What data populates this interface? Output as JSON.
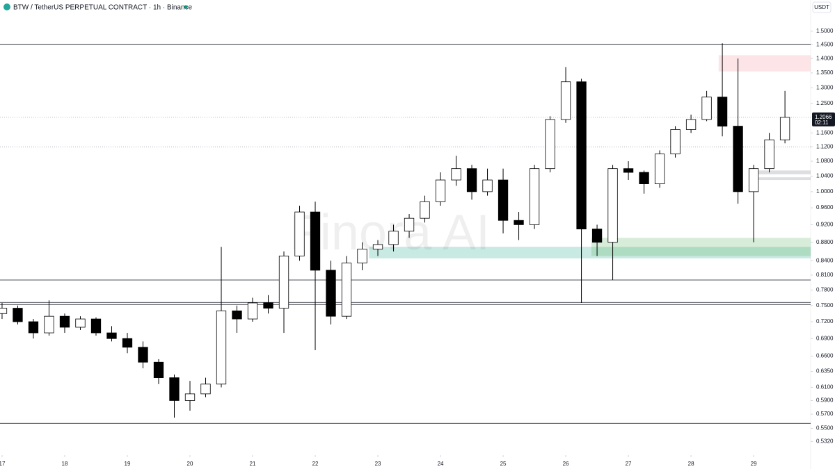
{
  "chart_data": {
    "type": "candlestick",
    "title": "BTW / TetherUS PERPETUAL CONTRACT · 1h · Binance",
    "currency": "USDT",
    "watermark": "Finora AI",
    "log_scale": true,
    "up_color": "#ffffff",
    "down_color": "#000000",
    "x": [
      17,
      17.25,
      17.5,
      17.75,
      18,
      18.25,
      18.5,
      18.75,
      19,
      19.25,
      19.5,
      19.75,
      20,
      20.25,
      20.5,
      20.75,
      21,
      21.25,
      21.5,
      21.75,
      22,
      22.25,
      22.5,
      22.75,
      23,
      23.25,
      23.5,
      23.75,
      24,
      24.25,
      24.5,
      24.75,
      25,
      25.25,
      25.5,
      25.75,
      26,
      26.25,
      26.5,
      26.75,
      27,
      27.25,
      27.5,
      27.75,
      28,
      28.25,
      28.5,
      28.75,
      29,
      29.25,
      29.5
    ],
    "open": [
      0.735,
      0.745,
      0.72,
      0.7,
      0.73,
      0.71,
      0.725,
      0.7,
      0.69,
      0.675,
      0.65,
      0.625,
      0.59,
      0.6,
      0.615,
      0.74,
      0.725,
      0.755,
      0.745,
      0.85,
      0.95,
      0.82,
      0.73,
      0.835,
      0.865,
      0.875,
      0.905,
      0.935,
      0.975,
      1.03,
      1.06,
      1.0,
      1.03,
      0.93,
      0.92,
      1.06,
      1.2,
      1.32,
      0.91,
      0.88,
      1.06,
      1.05,
      1.02,
      1.1,
      1.17,
      1.2,
      1.27,
      1.18,
      1.0,
      1.06,
      1.14
    ],
    "high": [
      0.755,
      0.75,
      0.725,
      0.76,
      0.735,
      0.73,
      0.728,
      0.712,
      0.7,
      0.685,
      0.655,
      0.63,
      0.62,
      0.625,
      0.87,
      0.75,
      0.765,
      0.77,
      0.86,
      0.965,
      0.975,
      0.84,
      0.85,
      0.88,
      0.885,
      0.92,
      0.945,
      0.99,
      1.05,
      1.095,
      1.07,
      1.06,
      1.06,
      0.95,
      1.07,
      1.21,
      1.37,
      1.33,
      0.92,
      1.07,
      1.08,
      1.055,
      1.11,
      1.18,
      1.215,
      1.29,
      1.455,
      1.4,
      1.07,
      1.16,
      1.29
    ],
    "low": [
      0.725,
      0.715,
      0.69,
      0.695,
      0.7,
      0.705,
      0.695,
      0.685,
      0.665,
      0.64,
      0.615,
      0.565,
      0.575,
      0.595,
      0.61,
      0.7,
      0.72,
      0.735,
      0.7,
      0.84,
      0.67,
      0.715,
      0.725,
      0.82,
      0.85,
      0.86,
      0.89,
      0.925,
      0.965,
      1.015,
      0.98,
      0.99,
      0.9,
      0.885,
      0.91,
      1.05,
      1.19,
      0.755,
      0.85,
      0.8,
      1.03,
      0.995,
      1.01,
      1.09,
      1.16,
      1.195,
      1.15,
      0.97,
      0.88,
      1.05,
      1.13
    ],
    "close": [
      0.745,
      0.72,
      0.7,
      0.73,
      0.71,
      0.725,
      0.7,
      0.69,
      0.675,
      0.65,
      0.625,
      0.59,
      0.6,
      0.615,
      0.74,
      0.725,
      0.755,
      0.745,
      0.85,
      0.95,
      0.82,
      0.73,
      0.835,
      0.865,
      0.875,
      0.905,
      0.935,
      0.975,
      1.03,
      1.06,
      1.0,
      1.03,
      0.93,
      0.92,
      1.06,
      1.2,
      1.32,
      0.91,
      0.88,
      1.06,
      1.05,
      1.02,
      1.1,
      1.17,
      1.2,
      1.27,
      1.18,
      1.0,
      1.06,
      1.14,
      1.2066
    ],
    "xlim": [
      16.967,
      29.91
    ],
    "xticks": [
      17,
      18,
      19,
      20,
      21,
      22,
      23,
      24,
      25,
      26,
      27,
      28,
      29
    ],
    "ylim": [
      0.514,
      1.623
    ],
    "yticks": [
      {
        "value": 1.5,
        "label": "1.5000"
      },
      {
        "value": 1.45,
        "label": "1.4500"
      },
      {
        "value": 1.4,
        "label": "1.4000"
      },
      {
        "value": 1.35,
        "label": "1.3500"
      },
      {
        "value": 1.3,
        "label": "1.3000"
      },
      {
        "value": 1.25,
        "label": "1.2500"
      },
      {
        "value": 1.16,
        "label": "1.1600"
      },
      {
        "value": 1.12,
        "label": "1.1200"
      },
      {
        "value": 1.08,
        "label": "1.0800"
      },
      {
        "value": 1.04,
        "label": "1.0400"
      },
      {
        "value": 1.0,
        "label": "1.0000"
      },
      {
        "value": 0.96,
        "label": "0.9600"
      },
      {
        "value": 0.92,
        "label": "0.9200"
      },
      {
        "value": 0.88,
        "label": "0.8800"
      },
      {
        "value": 0.84,
        "label": "0.8400"
      },
      {
        "value": 0.81,
        "label": "0.8100"
      },
      {
        "value": 0.78,
        "label": "0.7800"
      },
      {
        "value": 0.75,
        "label": "0.7500"
      },
      {
        "value": 0.72,
        "label": "0.7200"
      },
      {
        "value": 0.69,
        "label": "0.6900"
      },
      {
        "value": 0.66,
        "label": "0.6600"
      },
      {
        "value": 0.635,
        "label": "0.6350"
      },
      {
        "value": 0.61,
        "label": "0.6100"
      },
      {
        "value": 0.59,
        "label": "0.5900"
      },
      {
        "value": 0.57,
        "label": "0.5700"
      },
      {
        "value": 0.55,
        "label": "0.5500"
      },
      {
        "value": 0.532,
        "label": "0.5320"
      }
    ],
    "grid": false,
    "last_price": {
      "value": 1.2066,
      "label": "1.2066",
      "countdown": "02:11"
    },
    "levels": [
      {
        "value": 1.45,
        "style": "solid"
      },
      {
        "value": 0.8,
        "style": "solid"
      },
      {
        "value": 0.756,
        "style": "solid"
      },
      {
        "value": 0.752,
        "style": "solid"
      },
      {
        "value": 0.557,
        "style": "solid"
      },
      {
        "value": 1.2066,
        "style": "dotted"
      },
      {
        "value": 1.12,
        "style": "dotted"
      }
    ],
    "zones": [
      {
        "from": 1.355,
        "to": 1.412,
        "start": 28.44,
        "color": "rgba(242,54,69,0.13)"
      },
      {
        "from": 0.845,
        "to": 0.87,
        "start": 22.86,
        "color": "rgba(8,153,129,0.22)"
      },
      {
        "from": 0.85,
        "to": 0.89,
        "start": 26.41,
        "color": "rgba(76,175,80,0.22)"
      },
      {
        "from": 1.045,
        "to": 1.055,
        "start": 29.0,
        "color": "rgba(120,123,134,0.25)"
      },
      {
        "from": 1.03,
        "to": 1.037,
        "start": 29.0,
        "color": "rgba(120,123,134,0.25)"
      }
    ]
  }
}
